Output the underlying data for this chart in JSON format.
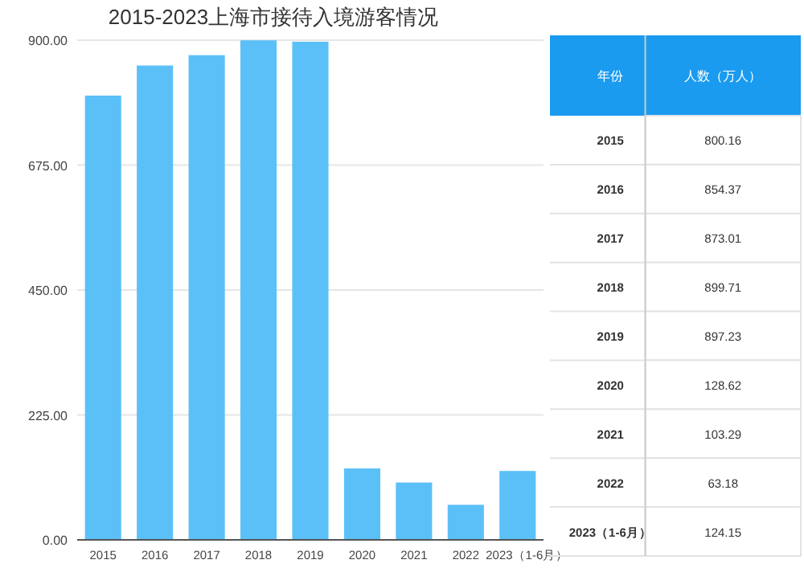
{
  "chart_data": [
    {
      "type": "bar",
      "title": "2015-2023上海市接待入境游客情况",
      "categories": [
        "2015",
        "2016",
        "2017",
        "2018",
        "2019",
        "2020",
        "2021",
        "2022",
        "2023（1-6月）"
      ],
      "values": [
        800.16,
        854.37,
        873.01,
        899.71,
        897.23,
        128.62,
        103.29,
        63.18,
        124.15
      ],
      "color": "#5bc0f8",
      "ylim": [
        0,
        900
      ],
      "yticks": [
        {
          "value": 0,
          "label": "0.00"
        },
        {
          "value": 225,
          "label": "225.00"
        },
        {
          "value": 450,
          "label": "450.00"
        },
        {
          "value": 675,
          "label": "675.00"
        },
        {
          "value": 900,
          "label": "900.00"
        }
      ],
      "grid": "y"
    },
    {
      "type": "heatmap",
      "ylabel": "年份",
      "categories": [
        "人数（万人）"
      ],
      "y_categories": [
        "2015",
        "2016",
        "2017",
        "2018",
        "2019",
        "2020",
        "2021",
        "2022",
        "2023（1-6月）"
      ],
      "cells": [
        [
          800.16
        ],
        [
          854.37
        ],
        [
          873.01
        ],
        [
          899.71
        ],
        [
          897.23
        ],
        [
          128.62
        ],
        [
          103.29
        ],
        [
          63.18
        ],
        [
          124.15
        ]
      ],
      "data_labels": true
    }
  ]
}
